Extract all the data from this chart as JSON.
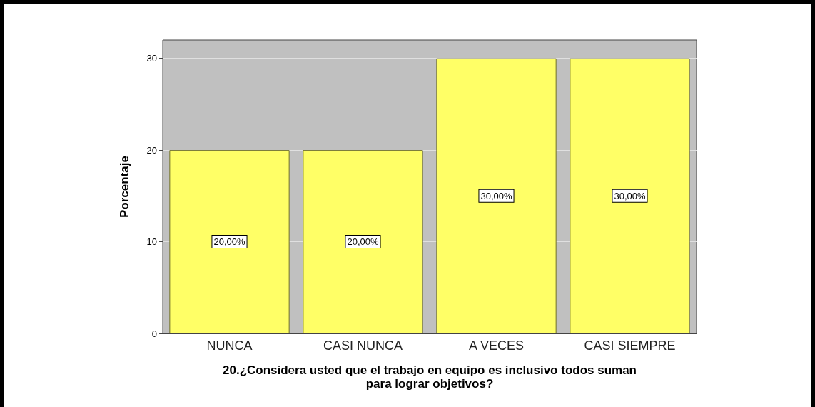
{
  "chart_data": {
    "type": "bar",
    "xlabel": "20.¿Considera usted que el trabajo en equipo es inclusivo todos suman\npara lograr objetivos?",
    "ylabel": "Porcentaje",
    "categories": [
      "NUNCA",
      "CASI NUNCA",
      "A VECES",
      "CASI SIEMPRE"
    ],
    "values": [
      20,
      20,
      30,
      30
    ],
    "value_labels": [
      "20,00%",
      "20,00%",
      "30,00%",
      "30,00%"
    ],
    "color": "#ffff66",
    "ylim": [
      0,
      32
    ],
    "yticks": [
      0,
      10,
      20,
      30
    ],
    "grid": "y"
  }
}
